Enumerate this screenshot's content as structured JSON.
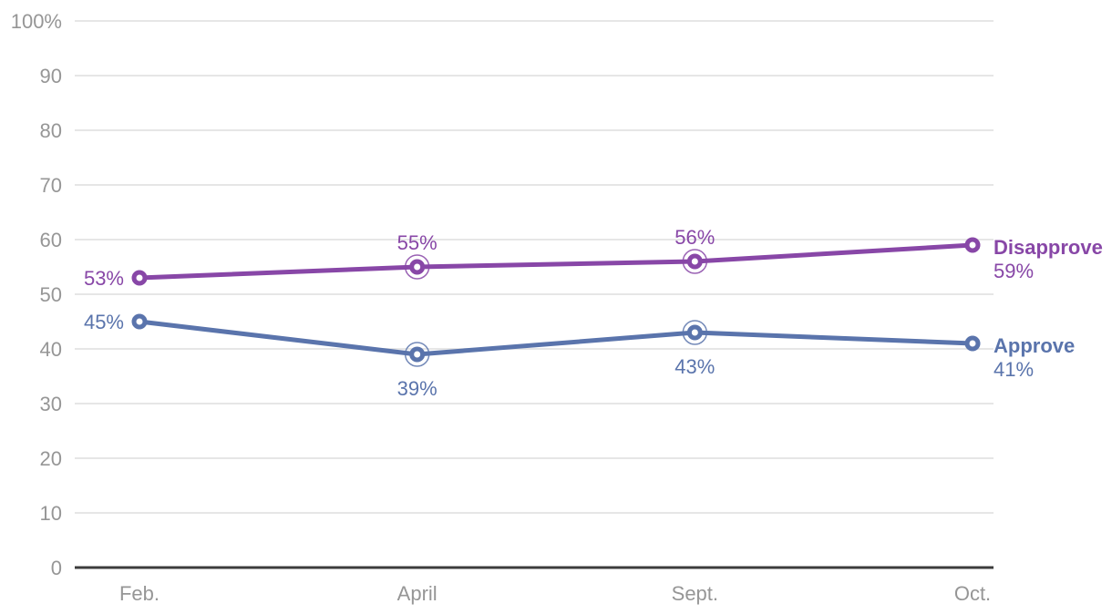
{
  "chart": {
    "background": "#ffffff",
    "axis_color": "#3c3c3c",
    "grid_color": "#e6e6e6",
    "tick_label_color": "#969696"
  },
  "chart_data": {
    "type": "line",
    "title": "",
    "xlabel": "",
    "ylabel": "",
    "categories": [
      "Feb.",
      "April",
      "Sept.",
      "Oct."
    ],
    "series": [
      {
        "name": "Disapprove",
        "color": "#8847a7",
        "values": [
          53,
          55,
          56,
          59
        ],
        "point_labels": [
          "53%",
          "55%",
          "56%",
          "59%"
        ],
        "label_positions": [
          "left",
          "above",
          "above",
          "end"
        ],
        "emphasized_points": [
          false,
          true,
          true,
          false
        ]
      },
      {
        "name": "Approve",
        "color": "#5a74ac",
        "values": [
          45,
          39,
          43,
          41
        ],
        "point_labels": [
          "45%",
          "39%",
          "43%",
          "41%"
        ],
        "label_positions": [
          "left",
          "below",
          "below",
          "end"
        ],
        "emphasized_points": [
          false,
          true,
          true,
          false
        ]
      }
    ],
    "ylim": [
      0,
      100
    ],
    "ytick_step": 10,
    "ytick_labels": [
      "100%",
      "90",
      "80",
      "70",
      "60",
      "50",
      "40",
      "30",
      "20",
      "10",
      "0"
    ],
    "grid": true,
    "legend_position": "line-end-right"
  }
}
